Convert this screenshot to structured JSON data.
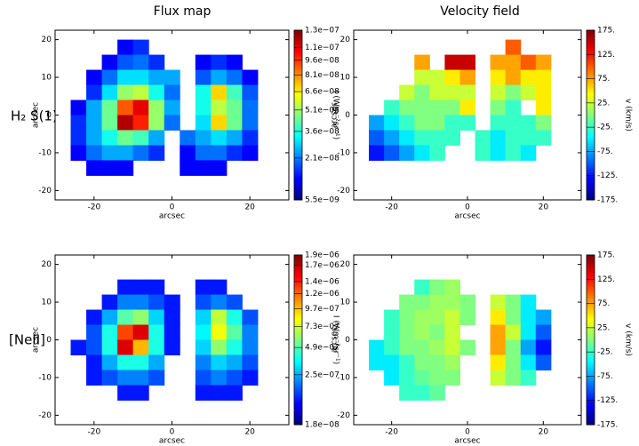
{
  "header": {
    "column_titles": [
      "Flux map",
      "Velocity field"
    ],
    "row_labels": [
      "H₂ S(1)",
      "[NeII]"
    ]
  },
  "chart_data": [
    {
      "type": "heatmap",
      "xlabel": "arcsec",
      "ylabel": "arcsec",
      "xlim": [
        -30,
        30
      ],
      "ylim": [
        -22.5,
        22.5
      ],
      "xticks": [
        -20,
        0,
        20
      ],
      "yticks": [
        -20,
        -10,
        0,
        10,
        20
      ],
      "x": [
        -24,
        -20,
        -16,
        -12,
        -8,
        -4,
        0,
        4,
        8,
        12,
        16,
        20,
        24
      ],
      "y": [
        18,
        14,
        10,
        6,
        2,
        -2,
        -6,
        -10,
        -14
      ],
      "z": [
        [
          null,
          null,
          null,
          1.2e-08,
          1.5e-08,
          null,
          null,
          null,
          null,
          null,
          null,
          null,
          null
        ],
        [
          null,
          null,
          1.2e-08,
          1.8e-08,
          2e-08,
          1.5e-08,
          null,
          null,
          1.2e-08,
          1.5e-08,
          1.2e-08,
          null,
          null
        ],
        [
          null,
          1.2e-08,
          2e-08,
          3e-08,
          3e-08,
          2.5e-08,
          2.5e-08,
          null,
          1.8e-08,
          2.5e-08,
          2e-08,
          1.2e-08,
          null
        ],
        [
          null,
          1.5e-08,
          3e-08,
          5e-08,
          5.5e-08,
          3.5e-08,
          2e-08,
          null,
          3.5e-08,
          7e-08,
          4e-08,
          1.8e-08,
          null
        ],
        [
          1.2e-08,
          2.5e-08,
          4.5e-08,
          9e-08,
          1.1e-07,
          5e-08,
          2.5e-08,
          null,
          3.5e-08,
          5.5e-08,
          4.5e-08,
          2e-08,
          null
        ],
        [
          1.5e-08,
          2.5e-08,
          4.5e-08,
          1.2e-07,
          1e-07,
          5e-08,
          2e-08,
          null,
          3e-08,
          7e-08,
          4.5e-08,
          2e-08,
          null
        ],
        [
          1.5e-08,
          2.5e-08,
          3.5e-08,
          4.5e-08,
          4e-08,
          2.5e-08,
          null,
          2e-08,
          2.5e-08,
          3e-08,
          2.5e-08,
          1.5e-08,
          null
        ],
        [
          1.2e-08,
          2e-08,
          2.5e-08,
          2.5e-08,
          2e-08,
          1.5e-08,
          null,
          1.2e-08,
          2e-08,
          2e-08,
          1.5e-08,
          1.2e-08,
          null
        ],
        [
          null,
          1.2e-08,
          1.2e-08,
          1.2e-08,
          null,
          null,
          null,
          1.2e-08,
          1.2e-08,
          1.2e-08,
          null,
          null,
          null
        ]
      ],
      "colorbar": {
        "label": "I (Wm⁻²sr⁻¹)",
        "colormap": "jet",
        "scale": "sqrt",
        "clim": [
          5.5e-09,
          1.3e-07
        ],
        "ticks": [
          {
            "value": 1.3e-07,
            "label": "1.3e−07"
          },
          {
            "value": 1.1e-07,
            "label": "1.1e−07"
          },
          {
            "value": 9.6e-08,
            "label": "9.6e−08"
          },
          {
            "value": 8.1e-08,
            "label": "8.1e−08"
          },
          {
            "value": 6.6e-08,
            "label": "6.6e−08"
          },
          {
            "value": 5.1e-08,
            "label": "5.1e−08"
          },
          {
            "value": 3.6e-08,
            "label": "3.6e−08"
          },
          {
            "value": 2.1e-08,
            "label": "2.1e−08"
          },
          {
            "value": 5.5e-09,
            "label": "5.5e−09"
          }
        ]
      }
    },
    {
      "type": "heatmap",
      "xlabel": "arcsec",
      "ylabel": "arcsec",
      "xlim": [
        -30,
        30
      ],
      "ylim": [
        -22.5,
        22.5
      ],
      "xticks": [
        -20,
        0,
        20
      ],
      "yticks": [
        -20,
        -10,
        0,
        10,
        20
      ],
      "x": [
        -24,
        -20,
        -16,
        -12,
        -8,
        -4,
        0,
        4,
        8,
        12,
        16,
        20,
        24
      ],
      "y": [
        18,
        14,
        10,
        6,
        2,
        -2,
        -6,
        -10,
        -14
      ],
      "z": [
        [
          null,
          null,
          null,
          null,
          null,
          null,
          null,
          null,
          null,
          100,
          null,
          null,
          null
        ],
        [
          null,
          null,
          null,
          75,
          null,
          150,
          150,
          null,
          75,
          75,
          100,
          75,
          null
        ],
        [
          null,
          null,
          null,
          25,
          25,
          50,
          75,
          null,
          50,
          75,
          50,
          50,
          null
        ],
        [
          null,
          null,
          25,
          0,
          25,
          25,
          25,
          null,
          25,
          0,
          25,
          50,
          null
        ],
        [
          null,
          -25,
          0,
          0,
          0,
          0,
          50,
          null,
          0,
          -25,
          null,
          50,
          null
        ],
        [
          -75,
          -50,
          -25,
          0,
          0,
          -25,
          -25,
          null,
          -25,
          -25,
          -25,
          0,
          null
        ],
        [
          -100,
          -75,
          -50,
          -25,
          -25,
          -25,
          null,
          -25,
          -50,
          -25,
          -25,
          -25,
          null
        ],
        [
          -125,
          -100,
          -75,
          -50,
          -25,
          null,
          null,
          -25,
          -50,
          -25,
          -50,
          null,
          null
        ],
        [
          null,
          null,
          null,
          null,
          null,
          null,
          null,
          null,
          null,
          null,
          null,
          null,
          null
        ]
      ],
      "colorbar": {
        "label": "v (km/s)",
        "colormap": "jet",
        "scale": "linear",
        "clim": [
          -175,
          175
        ],
        "ticks": [
          {
            "value": 175,
            "label": "175."
          },
          {
            "value": 125,
            "label": "125."
          },
          {
            "value": 75,
            "label": "75."
          },
          {
            "value": 25,
            "label": "25."
          },
          {
            "value": -25,
            "label": "-25."
          },
          {
            "value": -75,
            "label": "-75."
          },
          {
            "value": -125,
            "label": "-125."
          },
          {
            "value": -175,
            "label": "-175."
          }
        ]
      }
    },
    {
      "type": "heatmap",
      "xlabel": "arcsec",
      "ylabel": "arcsec",
      "xlim": [
        -30,
        30
      ],
      "ylim": [
        -22.5,
        22.5
      ],
      "xticks": [
        -20,
        0,
        20
      ],
      "yticks": [
        -20,
        -10,
        0,
        10,
        20
      ],
      "x": [
        -24,
        -20,
        -16,
        -12,
        -8,
        -4,
        0,
        4,
        8,
        12,
        16,
        20,
        24
      ],
      "y": [
        18,
        14,
        10,
        6,
        2,
        -2,
        -6,
        -10,
        -14
      ],
      "z": [
        [
          null,
          null,
          null,
          null,
          null,
          null,
          null,
          null,
          null,
          null,
          null,
          null,
          null
        ],
        [
          null,
          null,
          null,
          1e-07,
          1e-07,
          1e-07,
          null,
          null,
          1e-07,
          1e-07,
          null,
          null,
          null
        ],
        [
          null,
          null,
          1e-07,
          2e-07,
          2e-07,
          1.5e-07,
          1e-07,
          null,
          1.5e-07,
          2e-07,
          1.5e-07,
          null,
          null
        ],
        [
          null,
          1e-07,
          2.5e-07,
          5e-07,
          6e-07,
          3e-07,
          1e-07,
          null,
          3e-07,
          7e-07,
          4e-07,
          1.5e-07,
          null
        ],
        [
          null,
          1.5e-07,
          4e-07,
          1.3e-06,
          1.6e-06,
          4e-07,
          1e-07,
          null,
          3.5e-07,
          8e-07,
          5e-07,
          2e-07,
          null
        ],
        [
          1e-07,
          1.5e-07,
          4e-07,
          1.6e-06,
          1e-06,
          4e-07,
          1e-07,
          null,
          3e-07,
          6e-07,
          4e-07,
          2e-07,
          null
        ],
        [
          null,
          1e-07,
          2.5e-07,
          4e-07,
          4e-07,
          2.5e-07,
          null,
          null,
          2e-07,
          3e-07,
          2.5e-07,
          1.5e-07,
          null
        ],
        [
          null,
          1e-07,
          1.5e-07,
          2e-07,
          2e-07,
          1.5e-07,
          null,
          null,
          1.5e-07,
          2e-07,
          1.5e-07,
          1e-07,
          null
        ],
        [
          null,
          null,
          null,
          1e-07,
          1e-07,
          null,
          null,
          null,
          1e-07,
          1e-07,
          1e-07,
          null,
          null
        ]
      ],
      "colorbar": {
        "label": "I (Wm⁻²sr⁻¹)",
        "colormap": "jet",
        "scale": "sqrt",
        "clim": [
          1.8e-08,
          1.9e-06
        ],
        "ticks": [
          {
            "value": 1.9e-06,
            "label": "1.9e−06"
          },
          {
            "value": 1.7e-06,
            "label": "1.7e−06"
          },
          {
            "value": 1.4e-06,
            "label": "1.4e−06"
          },
          {
            "value": 1.2e-06,
            "label": "1.2e−06"
          },
          {
            "value": 9.7e-07,
            "label": "9.7e−07"
          },
          {
            "value": 7.3e-07,
            "label": "7.3e−07"
          },
          {
            "value": 4.9e-07,
            "label": "4.9e−07"
          },
          {
            "value": 2.5e-07,
            "label": "2.5e−07"
          },
          {
            "value": 1.8e-08,
            "label": "1.8e−08"
          }
        ]
      }
    },
    {
      "type": "heatmap",
      "xlabel": "arcsec",
      "ylabel": "arcsec",
      "xlim": [
        -30,
        30
      ],
      "ylim": [
        -22.5,
        22.5
      ],
      "xticks": [
        -20,
        0,
        20
      ],
      "yticks": [
        -20,
        -10,
        0,
        10,
        20
      ],
      "x": [
        -24,
        -20,
        -16,
        -12,
        -8,
        -4,
        0,
        4,
        8,
        12,
        16,
        20,
        24
      ],
      "y": [
        18,
        14,
        10,
        6,
        2,
        -2,
        -6,
        -10,
        -14
      ],
      "z": [
        [
          null,
          null,
          null,
          null,
          null,
          null,
          null,
          null,
          null,
          null,
          null,
          null,
          null
        ],
        [
          null,
          null,
          null,
          -25,
          0,
          10,
          null,
          null,
          null,
          null,
          null,
          null,
          null
        ],
        [
          null,
          null,
          0,
          0,
          10,
          10,
          0,
          null,
          25,
          0,
          -50,
          null,
          null
        ],
        [
          null,
          -25,
          0,
          10,
          10,
          25,
          0,
          null,
          50,
          0,
          -50,
          -75,
          null
        ],
        [
          null,
          -25,
          0,
          10,
          0,
          25,
          null,
          null,
          75,
          25,
          -50,
          -100,
          null
        ],
        [
          -50,
          -25,
          0,
          0,
          10,
          25,
          0,
          null,
          75,
          0,
          -75,
          -125,
          null
        ],
        [
          -50,
          -50,
          -25,
          0,
          0,
          10,
          null,
          null,
          50,
          0,
          -50,
          -100,
          null
        ],
        [
          null,
          -50,
          -25,
          -10,
          0,
          0,
          null,
          null,
          25,
          0,
          -25,
          null,
          null
        ],
        [
          null,
          null,
          -25,
          -25,
          -10,
          null,
          null,
          null,
          null,
          null,
          null,
          null,
          null
        ]
      ],
      "colorbar": {
        "label": "v (km/s)",
        "colormap": "jet",
        "scale": "linear",
        "clim": [
          -175,
          175
        ],
        "ticks": [
          {
            "value": 175,
            "label": "175."
          },
          {
            "value": 125,
            "label": "125."
          },
          {
            "value": 75,
            "label": "75."
          },
          {
            "value": 25,
            "label": "25."
          },
          {
            "value": -25,
            "label": "-25."
          },
          {
            "value": -75,
            "label": "-75."
          },
          {
            "value": -125,
            "label": "-125."
          },
          {
            "value": -175,
            "label": "-175."
          }
        ]
      }
    }
  ]
}
